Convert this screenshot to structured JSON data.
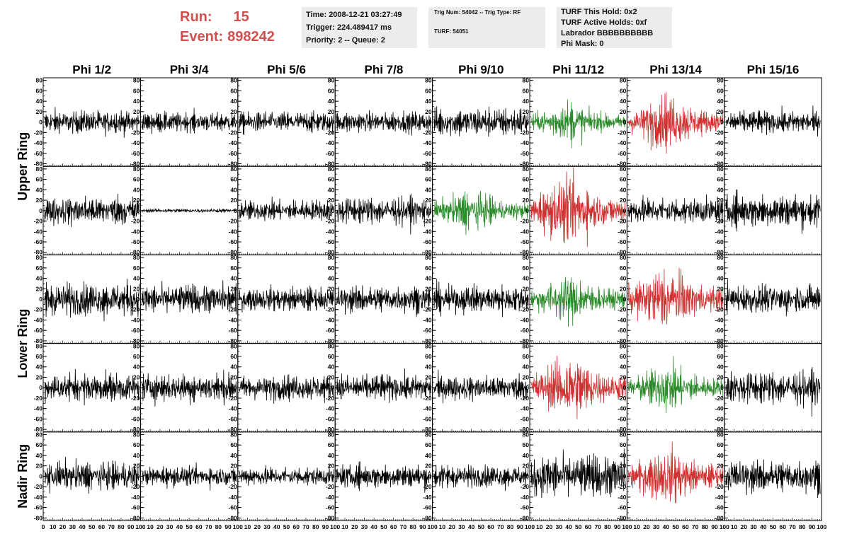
{
  "header": {
    "run_label": "Run:",
    "run_value": "15",
    "event_label": "Event:",
    "event_value": "898242",
    "title_color": "#d0504f"
  },
  "info_time": {
    "time": "Time: 2008-12-21 03:27:49",
    "trigger": "Trigger: 224.489417 ms",
    "priority": "Priority: 2 -- Queue: 2"
  },
  "info_trig": {
    "trig": "Trig Num: 54042 -- Trig Type: RF",
    "turf": "TURF: 54051"
  },
  "info_turf": {
    "hold": "TURF This Hold: 0x2",
    "active": "TURF Active Holds: 0xf",
    "labrador": "Labrador BBBBBBBBBB",
    "phimask": "Phi Mask: 0"
  },
  "chart_data": {
    "type": "line",
    "columns": [
      "Phi 1/2",
      "Phi 3/4",
      "Phi 5/6",
      "Phi 7/8",
      "Phi 9/10",
      "Phi 11/12",
      "Phi 13/14",
      "Phi 15/16"
    ],
    "ring_labels": [
      {
        "text": "Upper Ring",
        "rows": [
          0,
          1
        ]
      },
      {
        "text": "Lower Ring",
        "rows": [
          2,
          3
        ]
      },
      {
        "text": "Nadir Ring",
        "rows": [
          4
        ]
      }
    ],
    "xlim": [
      0,
      100
    ],
    "ylim": [
      -85,
      85
    ],
    "y_ticks": [
      80,
      60,
      40,
      20,
      0,
      -20,
      -40,
      -60,
      -80
    ],
    "x_ticks": [
      0,
      10,
      20,
      30,
      40,
      50,
      60,
      70,
      80,
      90,
      100
    ],
    "x_tick_labels": [
      "0",
      "10",
      "20",
      "30",
      "40",
      "50",
      "60",
      "70",
      "80",
      "90",
      "100"
    ],
    "colors": {
      "normal": "#000000",
      "triggered": "#d03030",
      "neighbor": "#2a8a2a"
    },
    "panels": [
      [
        {
          "color": "normal",
          "amp": 12
        },
        {
          "color": "normal",
          "amp": 10
        },
        {
          "color": "normal",
          "amp": 11
        },
        {
          "color": "normal",
          "amp": 11
        },
        {
          "color": "normal",
          "amp": 15
        },
        {
          "color": "neighbor",
          "amp": 14
        },
        {
          "color": "triggered",
          "amp": 20
        },
        {
          "color": "normal",
          "amp": 12
        }
      ],
      [
        {
          "color": "normal",
          "amp": 15
        },
        {
          "color": "normal",
          "amp": 2
        },
        {
          "color": "normal",
          "amp": 11
        },
        {
          "color": "normal",
          "amp": 14
        },
        {
          "color": "neighbor",
          "amp": 15
        },
        {
          "color": "triggered",
          "amp": 24
        },
        {
          "color": "normal",
          "amp": 14
        },
        {
          "color": "normal",
          "amp": 17
        }
      ],
      [
        {
          "color": "normal",
          "amp": 18
        },
        {
          "color": "normal",
          "amp": 15
        },
        {
          "color": "normal",
          "amp": 12
        },
        {
          "color": "normal",
          "amp": 14
        },
        {
          "color": "normal",
          "amp": 14
        },
        {
          "color": "neighbor",
          "amp": 18
        },
        {
          "color": "triggered",
          "amp": 24
        },
        {
          "color": "normal",
          "amp": 15
        }
      ],
      [
        {
          "color": "normal",
          "amp": 15
        },
        {
          "color": "normal",
          "amp": 15
        },
        {
          "color": "normal",
          "amp": 13
        },
        {
          "color": "normal",
          "amp": 14
        },
        {
          "color": "normal",
          "amp": 13
        },
        {
          "color": "triggered",
          "amp": 24
        },
        {
          "color": "neighbor",
          "amp": 18
        },
        {
          "color": "normal",
          "amp": 17
        }
      ],
      [
        {
          "color": "normal",
          "amp": 15
        },
        {
          "color": "normal",
          "amp": 10
        },
        {
          "color": "normal",
          "amp": 10
        },
        {
          "color": "normal",
          "amp": 12
        },
        {
          "color": "normal",
          "amp": 12
        },
        {
          "color": "normal",
          "amp": 22
        },
        {
          "color": "triggered",
          "amp": 20
        },
        {
          "color": "normal",
          "amp": 17
        }
      ]
    ]
  }
}
